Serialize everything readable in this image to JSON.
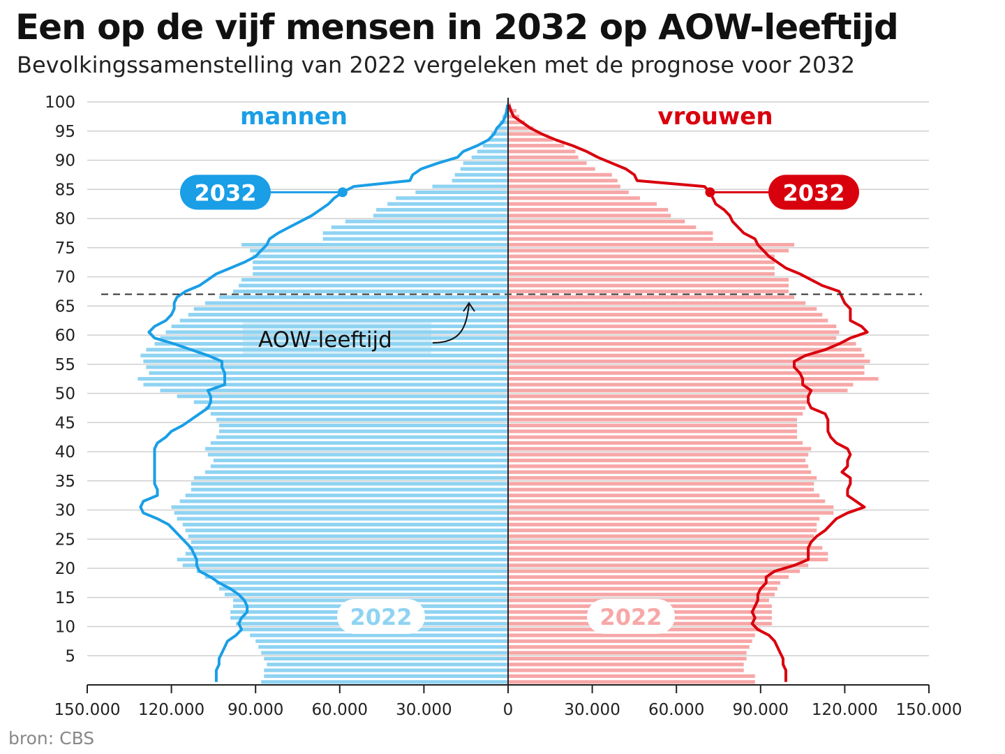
{
  "title": "Een op de vijf mensen in 2032 op AOW-leeftijd",
  "subtitle": "Bevolkingssamenstelling van 2022 vergeleken met de prognose voor 2032",
  "source": "bron: CBS",
  "colors": {
    "male_2022": "#8fd3f2",
    "male_2032": "#1a9ee6",
    "female_2022": "#f7a7a7",
    "female_2032": "#d9000d",
    "grid": "#cfcfcf",
    "axis": "#222222"
  },
  "chart_data": {
    "type": "population-pyramid",
    "title": "Een op de vijf mensen in 2032 op AOW-leeftijd",
    "subtitle": "Bevolkingssamenstelling van 2022 vergeleken met de prognose voor 2032",
    "left_label": "mannen",
    "right_label": "vrouwen",
    "xlim": [
      -150000,
      150000
    ],
    "ylim": [
      0,
      100
    ],
    "x_ticks": [
      -150000,
      -120000,
      -90000,
      -60000,
      -30000,
      0,
      30000,
      60000,
      90000,
      120000,
      150000
    ],
    "x_tick_labels": [
      "150.000",
      "120.000",
      "90.000",
      "60.000",
      "30.000",
      "0",
      "30.000",
      "60.000",
      "90.000",
      "120.000",
      "150.000"
    ],
    "y_ticks": [
      5,
      10,
      15,
      20,
      25,
      30,
      35,
      40,
      45,
      50,
      55,
      60,
      65,
      70,
      75,
      80,
      85,
      90,
      95,
      100
    ],
    "y_tick_labels": [
      "5",
      "10",
      "15",
      "20",
      "25",
      "30",
      "35",
      "40",
      "45",
      "50",
      "55",
      "60",
      "65",
      "70",
      "75",
      "80",
      "85",
      "90",
      "95",
      "100"
    ],
    "grid": true,
    "aow_age": 67,
    "aow_label": "AOW-leeftijd",
    "series_labels": {
      "bars": "2022",
      "line": "2032"
    },
    "line_highlight_age": 84,
    "ages": [
      0,
      1,
      2,
      3,
      4,
      5,
      6,
      7,
      8,
      9,
      10,
      11,
      12,
      13,
      14,
      15,
      16,
      17,
      18,
      19,
      20,
      21,
      22,
      23,
      24,
      25,
      26,
      27,
      28,
      29,
      30,
      31,
      32,
      33,
      34,
      35,
      36,
      37,
      38,
      39,
      40,
      41,
      42,
      43,
      44,
      45,
      46,
      47,
      48,
      49,
      50,
      51,
      52,
      53,
      54,
      55,
      56,
      57,
      58,
      59,
      60,
      61,
      62,
      63,
      64,
      65,
      66,
      67,
      68,
      69,
      70,
      71,
      72,
      73,
      74,
      75,
      76,
      77,
      78,
      79,
      80,
      81,
      82,
      83,
      84,
      85,
      86,
      87,
      88,
      89,
      90,
      91,
      92,
      93,
      94,
      95,
      96,
      97,
      98,
      99
    ],
    "male_2022": [
      88000,
      87000,
      87000,
      86000,
      87000,
      88000,
      89000,
      90000,
      92000,
      95000,
      97000,
      99000,
      99000,
      98000,
      98000,
      101000,
      103000,
      104000,
      108000,
      111000,
      116000,
      118000,
      115000,
      114000,
      113000,
      114000,
      115000,
      116000,
      118000,
      119000,
      120000,
      117000,
      115000,
      113000,
      113000,
      112000,
      108000,
      106000,
      105000,
      107000,
      108000,
      106000,
      104000,
      103000,
      103000,
      104000,
      106000,
      108000,
      112000,
      118000,
      124000,
      130000,
      132000,
      128000,
      129000,
      130000,
      131000,
      129000,
      126000,
      124000,
      122000,
      120000,
      117000,
      114000,
      112000,
      108000,
      103000,
      98000,
      96000,
      95000,
      91000,
      91000,
      91000,
      91000,
      92000,
      95000,
      66000,
      66000,
      63000,
      58000,
      48000,
      47000,
      43000,
      40000,
      33000,
      27000,
      20000,
      19000,
      17000,
      16000,
      13000,
      11000,
      9000,
      7000,
      6000,
      4000,
      3000,
      2000,
      1000,
      500
    ],
    "male_2032": [
      104000,
      104000,
      104000,
      103000,
      103000,
      102000,
      101000,
      100000,
      97000,
      95000,
      96000,
      95000,
      93000,
      93000,
      94000,
      96000,
      99000,
      103000,
      106000,
      110000,
      111000,
      111000,
      112000,
      113000,
      115000,
      117000,
      119000,
      121000,
      125000,
      130000,
      131000,
      130000,
      125000,
      125000,
      126000,
      126000,
      126000,
      126000,
      126000,
      126000,
      126000,
      125000,
      122000,
      120000,
      116000,
      113000,
      110000,
      107000,
      106000,
      106000,
      107000,
      101000,
      101000,
      101000,
      102000,
      102000,
      107000,
      113000,
      119000,
      126000,
      128000,
      126000,
      122000,
      120000,
      119000,
      119000,
      118000,
      115000,
      110000,
      107000,
      104000,
      99000,
      94000,
      90000,
      88000,
      86000,
      85000,
      82000,
      78000,
      74000,
      70000,
      67000,
      64000,
      62000,
      59000,
      55000,
      35000,
      34000,
      31000,
      25000,
      18000,
      16000,
      11000,
      7000,
      5000,
      4000,
      2000,
      1000,
      500,
      200
    ],
    "female_2022": [
      88000,
      88000,
      84000,
      84000,
      85000,
      85000,
      86000,
      87000,
      88000,
      90000,
      94000,
      94000,
      94000,
      94000,
      93000,
      95000,
      96000,
      97000,
      100000,
      104000,
      107000,
      114000,
      114000,
      112000,
      108000,
      109000,
      110000,
      110000,
      111000,
      116000,
      116000,
      113000,
      111000,
      109000,
      109000,
      110000,
      108000,
      107000,
      106000,
      107000,
      108000,
      105000,
      103000,
      103000,
      103000,
      103000,
      105000,
      106000,
      107000,
      107000,
      121000,
      123000,
      132000,
      127000,
      127000,
      129000,
      127000,
      126000,
      124000,
      117000,
      118000,
      117000,
      114000,
      112000,
      110000,
      106000,
      102000,
      100000,
      100000,
      100000,
      95000,
      95000,
      95000,
      95000,
      100000,
      102000,
      73000,
      73000,
      67000,
      63000,
      58000,
      57000,
      53000,
      47000,
      43000,
      40000,
      39000,
      37000,
      31000,
      28000,
      25000,
      24000,
      20000,
      16000,
      12000,
      9000,
      6000,
      4000,
      3000,
      1000
    ],
    "female_2032": [
      99000,
      99000,
      99000,
      98000,
      98000,
      97000,
      96000,
      95000,
      93000,
      89000,
      87000,
      88000,
      87000,
      88000,
      89000,
      89000,
      90000,
      92000,
      92000,
      95000,
      102000,
      107000,
      107000,
      107000,
      108000,
      110000,
      113000,
      115000,
      117000,
      121000,
      127000,
      124000,
      121000,
      121000,
      122000,
      122000,
      119000,
      121000,
      121000,
      122000,
      121000,
      117000,
      115000,
      114000,
      114000,
      114000,
      113000,
      108000,
      107000,
      107000,
      108000,
      105000,
      105000,
      104000,
      102000,
      102000,
      106000,
      113000,
      118000,
      122000,
      128000,
      126000,
      122000,
      122000,
      122000,
      120000,
      119000,
      118000,
      112000,
      108000,
      104000,
      99000,
      96000,
      93000,
      91000,
      89000,
      88000,
      84000,
      82000,
      80000,
      79000,
      77000,
      74000,
      73000,
      72000,
      70000,
      46000,
      45000,
      42000,
      37000,
      32000,
      28000,
      23000,
      17000,
      12000,
      8000,
      5000,
      2000,
      1000,
      300
    ]
  }
}
